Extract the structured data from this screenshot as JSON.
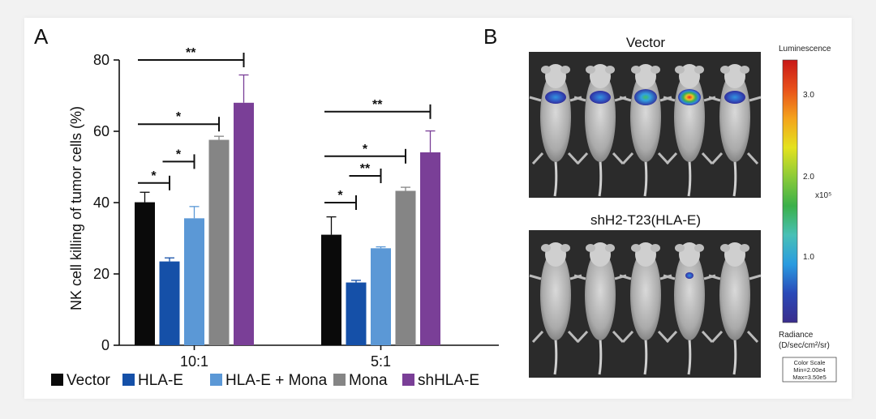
{
  "panel_a_label": "A",
  "panel_b_label": "B",
  "chart_data": {
    "type": "bar",
    "title": "",
    "xlabel": "",
    "ylabel": "NK cell killing of tumor cells (%)",
    "ylim": [
      0,
      80
    ],
    "yticks": [
      "0",
      "20",
      "40",
      "60",
      "80"
    ],
    "categories": [
      "10:1",
      "5:1"
    ],
    "series": [
      {
        "name": "Vector",
        "color": "#0a0a0a",
        "values": [
          40.1,
          31.0
        ],
        "errors": [
          2.8,
          5.0
        ]
      },
      {
        "name": "HLA-E",
        "color": "#1550a8",
        "values": [
          23.5,
          17.6
        ],
        "errors": [
          1.0,
          0.6
        ]
      },
      {
        "name": "HLA-E + Mona",
        "color": "#5b98d6",
        "values": [
          35.6,
          27.2
        ],
        "errors": [
          3.3,
          0.4
        ]
      },
      {
        "name": "Mona",
        "color": "#858585",
        "values": [
          57.6,
          43.3
        ],
        "errors": [
          1.0,
          1.0
        ]
      },
      {
        "name": "shHLA-E",
        "color": "#7a3f97",
        "values": [
          68.0,
          54.1
        ],
        "errors": [
          7.8,
          6.0
        ]
      }
    ],
    "significance": [
      {
        "group": 0,
        "from": 0,
        "to": 1,
        "y": 45.5,
        "label": "*"
      },
      {
        "group": 0,
        "from": 1,
        "to": 2,
        "y": 51.5,
        "label": "*"
      },
      {
        "group": 0,
        "from": 0,
        "to": 3,
        "y": 62.0,
        "label": "*"
      },
      {
        "group": 0,
        "from": 0,
        "to": 4,
        "y": 80.0,
        "label": "**"
      },
      {
        "group": 1,
        "from": 0,
        "to": 1,
        "y": 40.0,
        "label": "*"
      },
      {
        "group": 1,
        "from": 1,
        "to": 2,
        "y": 47.5,
        "label": "**"
      },
      {
        "group": 1,
        "from": 0,
        "to": 3,
        "y": 53.0,
        "label": "*"
      },
      {
        "group": 1,
        "from": 0,
        "to": 4,
        "y": 65.5,
        "label": "**"
      }
    ],
    "legend_position": "bottom"
  },
  "imaging": {
    "top_title": "Vector",
    "bottom_title": "shH2-T23(HLA-E)",
    "colorbar_title": "Luminescence",
    "colorbar_ticks": [
      "3.0",
      "2.0",
      "1.0"
    ],
    "colorbar_exponent": "x10⁵",
    "radiance_label_1": "Radiance",
    "radiance_label_2": "(D/sec/cm²/sr)",
    "color_scale_1": "Color Scale",
    "color_scale_2": "Min=2.00e4",
    "color_scale_3": "Max=3.50e5",
    "gradient_colors": [
      "#c81818",
      "#e8501a",
      "#f4a31c",
      "#e4e21e",
      "#8ccb38",
      "#3bb04a",
      "#48c0b6",
      "#2a9be0",
      "#2a49b8",
      "#3a2d8c"
    ],
    "top_signal": [
      1,
      1,
      2,
      3,
      1
    ],
    "bottom_signal": [
      0,
      0,
      0,
      1,
      0
    ]
  }
}
